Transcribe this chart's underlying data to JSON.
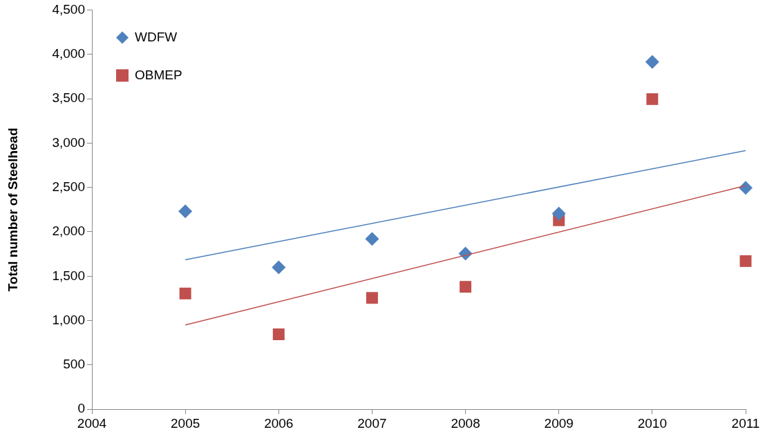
{
  "chart_data": {
    "type": "scatter",
    "ylabel": "Total number of Steelhead",
    "xlim": [
      2004,
      2011
    ],
    "xticks": [
      2004,
      2005,
      2006,
      2007,
      2008,
      2009,
      2010,
      2011
    ],
    "ylim": [
      0,
      4500
    ],
    "yticks": [
      0,
      500,
      {
        "value": 1000,
        "label": "1,000"
      },
      {
        "value": 1500,
        "label": "1,500"
      },
      {
        "value": 2000,
        "label": "2,000"
      },
      {
        "value": 2500,
        "label": "2,500"
      },
      {
        "value": 3000,
        "label": "3,000"
      },
      {
        "value": 3500,
        "label": "3,500"
      },
      {
        "value": 4000,
        "label": "4,000"
      },
      {
        "value": 4500,
        "label": "4,500"
      }
    ],
    "grid": false,
    "legend": "top left",
    "series": [
      {
        "name": "WDFW",
        "type": "scatter",
        "marker": "diamond",
        "color": "#4f81bd",
        "x": [
          2005,
          2006,
          2007,
          2008,
          2009,
          2010,
          2011
        ],
        "values": [
          2230,
          1600,
          1920,
          1755,
          2205,
          3915,
          2495
        ]
      },
      {
        "name": "OBMEP",
        "type": "scatter",
        "marker": "square",
        "color": "#c0504d",
        "x": [
          2005,
          2006,
          2007,
          2008,
          2009,
          2010,
          2011
        ],
        "values": [
          1305,
          845,
          1255,
          1380,
          2130,
          3495,
          1670
        ]
      },
      {
        "type": "line",
        "marker": "none",
        "color": "#4f81bd",
        "x": [
          2005,
          2011
        ],
        "values": [
          1685,
          2915
        ]
      },
      {
        "type": "line",
        "marker": "none",
        "color": "#c0504d",
        "x": [
          2005,
          2011
        ],
        "values": [
          950,
          2520
        ]
      }
    ]
  }
}
